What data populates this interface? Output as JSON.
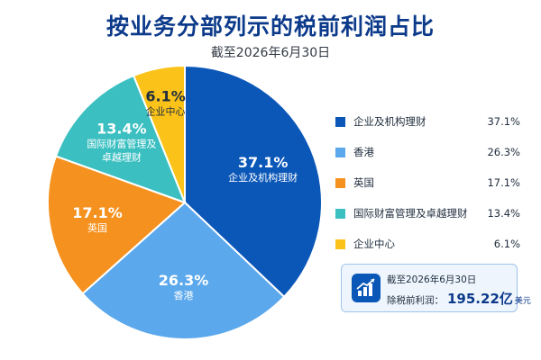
{
  "header": {
    "title": "按业务分部列示的税前利润占比",
    "subtitle": "截至2026年6月30日"
  },
  "chart_data": {
    "type": "pie",
    "categories": [
      "企业及机构理财",
      "香港",
      "英国",
      "国际财富管理及卓越理财",
      "企业中心"
    ],
    "values": [
      37.1,
      26.3,
      17.1,
      13.4,
      6.1
    ],
    "pct_labels": [
      "37.1%",
      "26.3%",
      "17.1%",
      "13.4%",
      "6.1%"
    ],
    "slice_names": [
      [
        "企业及机构理财"
      ],
      [
        "香港"
      ],
      [
        "英国"
      ],
      [
        "国际财富管理及",
        "卓越理财"
      ],
      [
        "企业中心"
      ]
    ],
    "colors": [
      "#0b57b8",
      "#5ca8ec",
      "#f5911e",
      "#3bbfc1",
      "#fbc319"
    ],
    "label_dark": [
      false,
      false,
      false,
      false,
      true
    ],
    "legend_position": "right"
  },
  "info_box": {
    "date": "截至2026年6月30日",
    "label": "除税前利润：",
    "amount": "195.22亿",
    "unit": "美元",
    "icon": "bar-chart-growth-icon"
  }
}
